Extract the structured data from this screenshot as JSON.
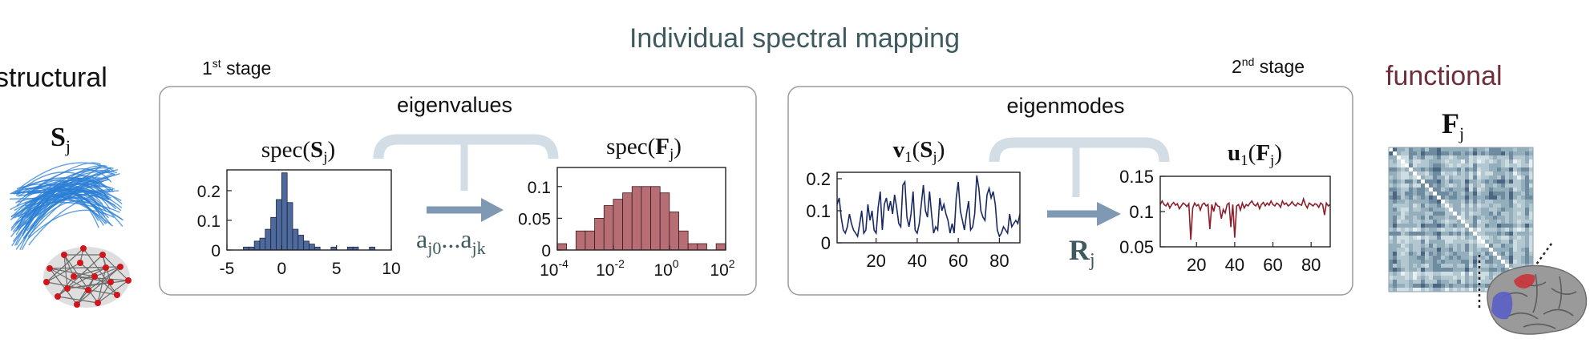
{
  "title": "Individual spectral mapping",
  "left_label": "structural",
  "right_label": "functional",
  "stage1": {
    "label_num": "1",
    "label_sup": "st",
    "label_text": " stage",
    "box_title": "eigenvalues",
    "coef_label": {
      "a": "a",
      "sub1": "j0",
      "dots": "...",
      "sub2": "jk"
    }
  },
  "stage2": {
    "label_num": "2",
    "label_sup": "nd",
    "label_text": " stage",
    "box_title": "eigenmodes",
    "rotation_label": {
      "main": "R",
      "sub": "j"
    }
  },
  "structural_symbol": {
    "main": "S",
    "sub": "j"
  },
  "functional_symbol": {
    "main": "F",
    "sub": "j"
  },
  "colors": {
    "title": "#3e5a5f",
    "functional_label": "#6e2e3a",
    "panel_border": "#9a9a9a",
    "arrow": "#7f98b3",
    "bracket": "#d3dde6",
    "hist_struct": "#4e6a9c",
    "hist_func": "#b66e74",
    "line_struct": "#1b2a63",
    "line_func": "#8c1f2a",
    "fiber": "#2b7fd4",
    "matrix_dark": "#2f4560",
    "matrix_light": "#dfeaee"
  },
  "chart_data": [
    {
      "type": "bar",
      "title": {
        "pre": "spec(",
        "main": "S",
        "sub": "j",
        "post": ")"
      },
      "x_ticks": [
        "-5",
        "0",
        "5",
        "10"
      ],
      "y_ticks": [
        "0",
        "0.1",
        "0.2"
      ],
      "xlim": [
        -5,
        10
      ],
      "ylim": [
        0,
        0.27
      ],
      "bin_width": 0.5,
      "bin_starts": [
        -3.5,
        -3,
        -2.5,
        -2,
        -1.5,
        -1,
        -0.5,
        0,
        0.5,
        1,
        1.5,
        2,
        2.5,
        3,
        4.5,
        6,
        6.5,
        8
      ],
      "values": [
        0.01,
        0.01,
        0.03,
        0.04,
        0.07,
        0.11,
        0.17,
        0.26,
        0.16,
        0.07,
        0.05,
        0.03,
        0.02,
        0.01,
        0.01,
        0.01,
        0.01,
        0.01
      ]
    },
    {
      "type": "bar",
      "title": {
        "pre": "spec(",
        "main": "F",
        "sub": "j",
        "post": ")"
      },
      "x_ticks": [
        {
          "base": "10",
          "exp": "-4"
        },
        {
          "base": "10",
          "exp": "-2"
        },
        {
          "base": "10",
          "exp": "0"
        },
        {
          "base": "10",
          "exp": "2"
        }
      ],
      "y_ticks": [
        "0",
        "0.05",
        "0.1"
      ],
      "x_scale": "log",
      "xlim_log10": [
        -4,
        2
      ],
      "ylim": [
        0,
        0.13
      ],
      "bin_width_log10": 0.333,
      "values": [
        0.01,
        0.0,
        0.03,
        0.03,
        0.05,
        0.07,
        0.08,
        0.09,
        0.1,
        0.1,
        0.1,
        0.09,
        0.06,
        0.03,
        0.01,
        0.01,
        0.0,
        0.01
      ]
    },
    {
      "type": "line",
      "title": {
        "main": "v",
        "idx": "1",
        "pre": "(",
        "inner": "S",
        "sub": "j",
        "post": ")"
      },
      "x_ticks": [
        "20",
        "40",
        "60",
        "80"
      ],
      "y_ticks": [
        "0",
        "0.1",
        "0.2"
      ],
      "xlim": [
        1,
        90
      ],
      "ylim": [
        0,
        0.22
      ],
      "values": [
        0.12,
        0.14,
        0.08,
        0.04,
        0.03,
        0.05,
        0.09,
        0.06,
        0.04,
        0.03,
        0.02,
        0.06,
        0.1,
        0.03,
        0.04,
        0.12,
        0.07,
        0.1,
        0.04,
        0.03,
        0.11,
        0.16,
        0.04,
        0.12,
        0.14,
        0.1,
        0.13,
        0.09,
        0.15,
        0.11,
        0.06,
        0.05,
        0.18,
        0.19,
        0.08,
        0.05,
        0.09,
        0.16,
        0.04,
        0.03,
        0.06,
        0.12,
        0.18,
        0.1,
        0.08,
        0.16,
        0.09,
        0.03,
        0.05,
        0.04,
        0.14,
        0.1,
        0.12,
        0.09,
        0.07,
        0.03,
        0.06,
        0.03,
        0.14,
        0.19,
        0.1,
        0.07,
        0.04,
        0.09,
        0.13,
        0.04,
        0.05,
        0.09,
        0.21,
        0.17,
        0.1,
        0.08,
        0.07,
        0.15,
        0.17,
        0.14,
        0.16,
        0.12,
        0.04,
        0.02,
        0.03,
        0.05,
        0.04,
        0.03,
        0.09,
        0.05,
        0.06,
        0.07,
        0.06,
        0.09
      ]
    },
    {
      "type": "line",
      "title": {
        "main": "u",
        "idx": "1",
        "pre": "(",
        "inner": "F",
        "sub": "j",
        "post": ")"
      },
      "x_ticks": [
        "20",
        "40",
        "60",
        "80"
      ],
      "y_ticks": [
        "0.05",
        "0.1",
        "0.15"
      ],
      "xlim": [
        1,
        90
      ],
      "ylim": [
        0.05,
        0.15
      ],
      "values": [
        0.11,
        0.115,
        0.11,
        0.108,
        0.112,
        0.105,
        0.11,
        0.113,
        0.109,
        0.111,
        0.104,
        0.108,
        0.112,
        0.11,
        0.107,
        0.111,
        0.06,
        0.105,
        0.112,
        0.108,
        0.11,
        0.102,
        0.11,
        0.112,
        0.108,
        0.11,
        0.075,
        0.11,
        0.1,
        0.112,
        0.108,
        0.107,
        0.09,
        0.103,
        0.098,
        0.11,
        0.112,
        0.078,
        0.11,
        0.063,
        0.108,
        0.11,
        0.102,
        0.112,
        0.105,
        0.11,
        0.108,
        0.112,
        0.115,
        0.11,
        0.108,
        0.112,
        0.104,
        0.11,
        0.113,
        0.108,
        0.112,
        0.109,
        0.115,
        0.11,
        0.108,
        0.112,
        0.11,
        0.106,
        0.115,
        0.11,
        0.112,
        0.108,
        0.11,
        0.114,
        0.11,
        0.108,
        0.112,
        0.11,
        0.109,
        0.118,
        0.11,
        0.105,
        0.112,
        0.11,
        0.108,
        0.111,
        0.11,
        0.106,
        0.112,
        0.11,
        0.095,
        0.112,
        0.108,
        0.11
      ]
    }
  ]
}
